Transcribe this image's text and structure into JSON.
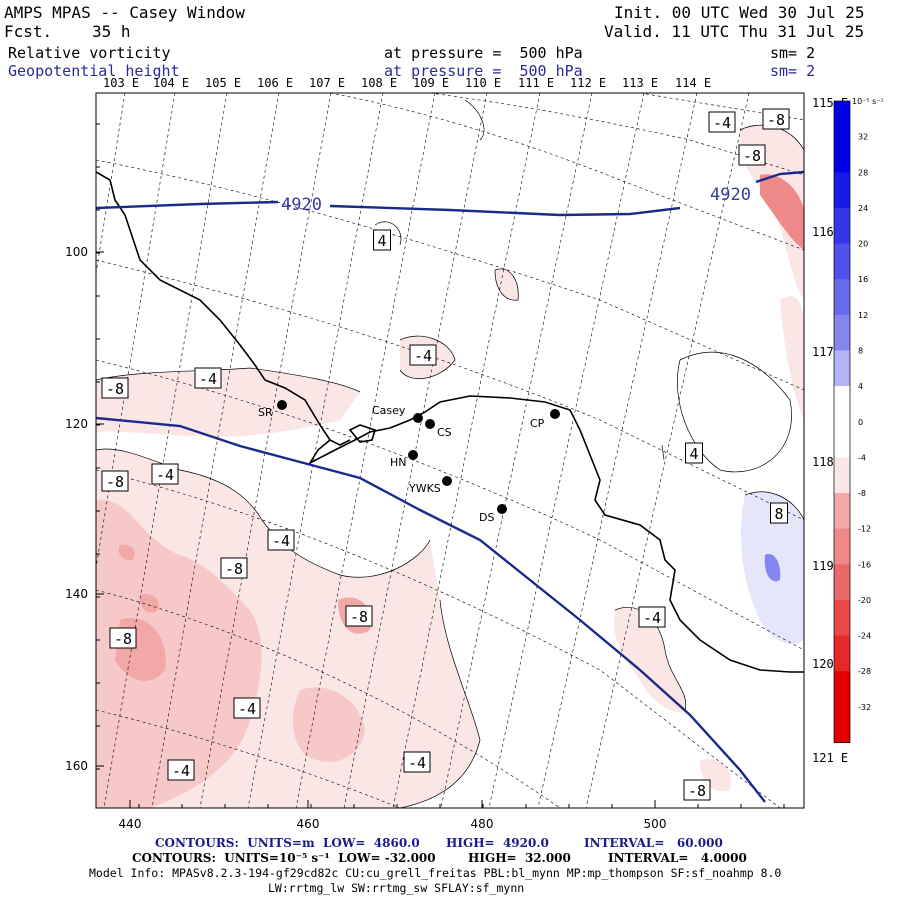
{
  "header": {
    "model": "AMPS MPAS -- Casey Window",
    "fcst_label": "Fcst.",
    "fcst_value": "35 h",
    "init": "Init. 00 UTC Wed 30 Jul 25",
    "valid": "Valid. 11 UTC Thu 31 Jul 25",
    "field1": "Relative vorticity",
    "field1_pressure": "at pressure =  500 hPa",
    "field1_sm": "sm= 2",
    "field2": "Geopotential height",
    "field2_pressure": "at pressure =  500 hPa",
    "field2_sm": "sm= 2"
  },
  "top_lon_labels": [
    "103 E",
    "104 E",
    "105 E",
    "106 E",
    "107 E",
    "108 E",
    "109 E",
    "110 E",
    "111 E",
    "112 E",
    "113 E",
    "114 E"
  ],
  "right_lon_labels": [
    "115 E",
    "116 E",
    "117 E",
    "118 E",
    "119 E",
    "120 E",
    "121 E"
  ],
  "x_ticks": [
    "440",
    "460",
    "480",
    "500"
  ],
  "y_ticks": [
    "100",
    "120",
    "140",
    "160"
  ],
  "stations": [
    {
      "name": "SR"
    },
    {
      "name": "Casey"
    },
    {
      "name": "CS"
    },
    {
      "name": "CP"
    },
    {
      "name": "HN"
    },
    {
      "name": "YWKS"
    },
    {
      "name": "DS"
    }
  ],
  "height_labels": [
    "4920",
    "4920"
  ],
  "vort_labels": [
    "-4",
    "-8",
    "-8",
    "4",
    "-4",
    "-8",
    "-4",
    "-8",
    "-4",
    "-4",
    "4",
    "8",
    "-8",
    "-4",
    "-8",
    "-8",
    "-4",
    "-4",
    "-4",
    "-8"
  ],
  "colorbar": {
    "unit": "10⁻⁵ s⁻¹",
    "values": [
      "32",
      "28",
      "24",
      "20",
      "16",
      "12",
      "8",
      "4",
      "0",
      "-4",
      "-8",
      "-12",
      "-16",
      "-20",
      "-24",
      "-28",
      "-32"
    ],
    "colors": [
      "#0000e6",
      "#1a1ae8",
      "#3535ea",
      "#5050ec",
      "#6a6aee",
      "#8585f0",
      "#b4b4f7",
      "#e6e6fb",
      "#ffffff",
      "#fbe6e6",
      "#f7c8c8",
      "#f3a8a8",
      "#ef8888",
      "#eb6868",
      "#e84848",
      "#e52828",
      "#e20000"
    ]
  },
  "footer": {
    "line1_contours": "CONTOURS:  UNITS=m  LOW=  4860.0",
    "line1_high": "HIGH=  4920.0",
    "line1_interval": "INTERVAL=   60.000",
    "line2_contours": "CONTOURS:  UNITS=10⁻⁵ s⁻¹  LOW= -32.000",
    "line2_high": "HIGH=  32.000",
    "line2_interval": "INTERVAL=   4.0000",
    "model_info": "Model Info: MPASv8.2.3-194-gf29cd82c CU:cu_grell_freitas PBL:bl_mynn MP:mp_thompson SF:sf_noahmp 8.0",
    "model_info2": "LW:rrtmg_lw SW:rrtmg_sw SFLAY:sf_mynn"
  }
}
